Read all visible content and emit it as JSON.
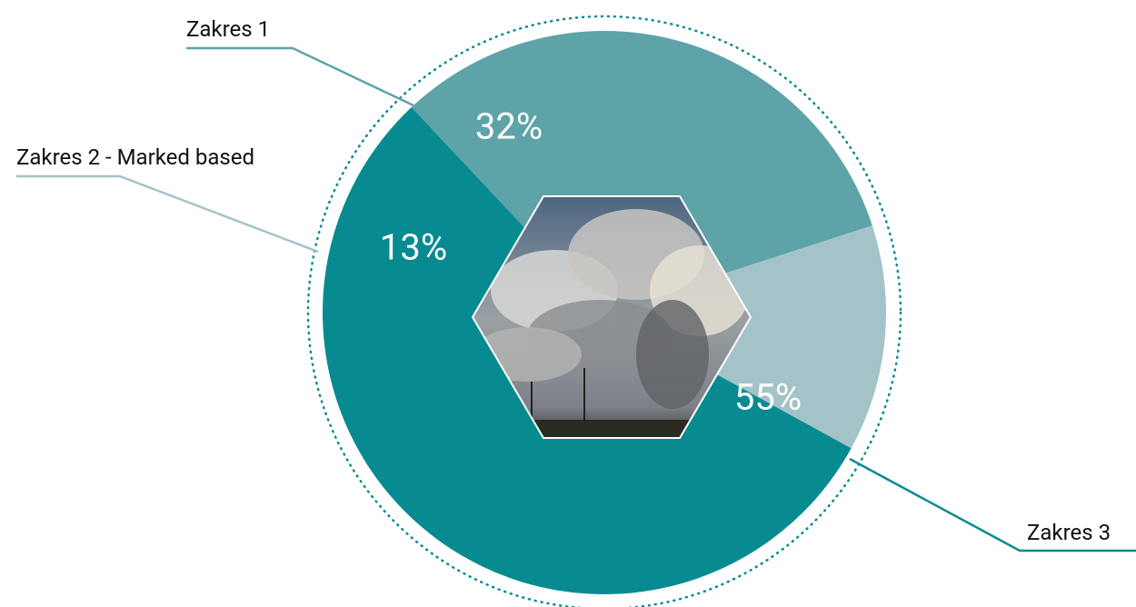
{
  "chart_data": {
    "type": "pie",
    "categories": [
      "Zakres 1",
      "Zakres 2 - Marked based",
      "Zakres 3"
    ],
    "values": [
      32,
      13,
      55
    ],
    "value_labels": [
      "32%",
      "13%",
      "55%"
    ],
    "colors": [
      "#5ea3a8",
      "#a3c3c9",
      "#078b91"
    ]
  }
}
